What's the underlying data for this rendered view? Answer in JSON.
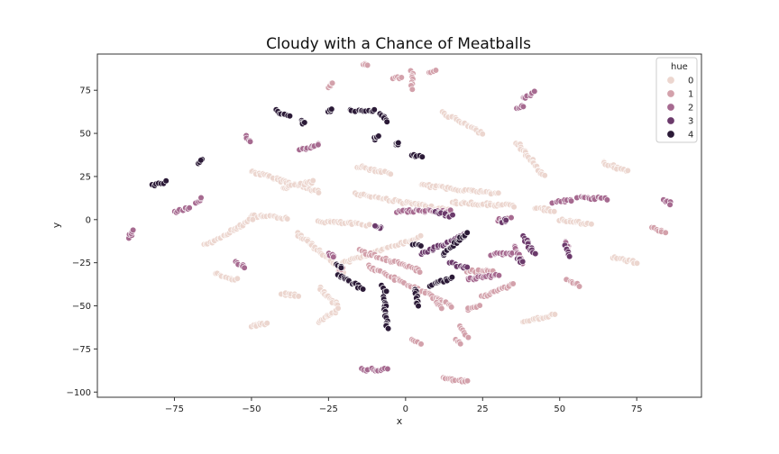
{
  "chart_data": {
    "type": "scatter",
    "title": "Cloudy with a Chance of Meatballs",
    "xlabel": "x",
    "ylabel": "y",
    "xlim": [
      -100,
      96
    ],
    "ylim": [
      -103,
      96
    ],
    "xticks": [
      -75,
      -50,
      -25,
      0,
      25,
      50,
      75
    ],
    "yticks": [
      -100,
      -75,
      -50,
      -25,
      0,
      25,
      50,
      75
    ],
    "xtick_labels": [
      "−75",
      "−50",
      "−25",
      "0",
      "25",
      "50",
      "75"
    ],
    "ytick_labels": [
      "−100",
      "−75",
      "−50",
      "−25",
      "0",
      "25",
      "50",
      "75"
    ],
    "legend": {
      "title": "hue",
      "placement": "top-right",
      "entries": [
        {
          "label": "0",
          "color": "#ecd6cf"
        },
        {
          "label": "1",
          "color": "#d3a1ab"
        },
        {
          "label": "2",
          "color": "#a66a90"
        },
        {
          "label": "3",
          "color": "#6b3a6b"
        },
        {
          "label": "4",
          "color": "#2b1a37"
        }
      ]
    },
    "series": [
      {
        "hue": 0,
        "segments": [
          [
            [
              -50,
              28
            ],
            [
              -28,
              16
            ]
          ],
          [
            [
              -16,
              31
            ],
            [
              -5,
              27
            ]
          ],
          [
            [
              -50,
              2
            ],
            [
              -38,
              1
            ]
          ],
          [
            [
              -65,
              -15
            ],
            [
              -50,
              0
            ]
          ],
          [
            [
              -28,
              -1
            ],
            [
              -12,
              -3
            ]
          ],
          [
            [
              -16,
              15
            ],
            [
              15,
              5
            ]
          ],
          [
            [
              -20,
              -25
            ],
            [
              5,
              -10
            ]
          ],
          [
            [
              -35,
              -8
            ],
            [
              -20,
              -30
            ]
          ],
          [
            [
              -28,
              -40
            ],
            [
              -22,
              -50
            ]
          ],
          [
            [
              -28,
              -60
            ],
            [
              -22,
              -52
            ]
          ],
          [
            [
              -62,
              -31
            ],
            [
              -55,
              -35
            ]
          ],
          [
            [
              -40,
              -43
            ],
            [
              -35,
              -44
            ]
          ],
          [
            [
              -50,
              -62
            ],
            [
              -45,
              -60
            ]
          ],
          [
            [
              5,
              20
            ],
            [
              30,
              15
            ]
          ],
          [
            [
              12,
              62
            ],
            [
              25,
              50
            ]
          ],
          [
            [
              36,
              45
            ],
            [
              45,
              25
            ]
          ],
          [
            [
              15,
              10
            ],
            [
              35,
              8
            ]
          ],
          [
            [
              42,
              7
            ],
            [
              48,
              5
            ]
          ],
          [
            [
              50,
              0
            ],
            [
              60,
              -3
            ]
          ],
          [
            [
              64,
              33
            ],
            [
              72,
              28
            ]
          ],
          [
            [
              67,
              -22
            ],
            [
              75,
              -25
            ]
          ],
          [
            [
              38,
              -60
            ],
            [
              48,
              -55
            ]
          ],
          [
            [
              -40,
              18
            ],
            [
              -30,
              22
            ]
          ]
        ]
      },
      {
        "hue": 1,
        "segments": [
          [
            [
              -25,
              77
            ],
            [
              -24,
              79
            ]
          ],
          [
            [
              -14,
              90
            ],
            [
              -12,
              90
            ]
          ],
          [
            [
              -4,
              82
            ],
            [
              -1,
              82
            ]
          ],
          [
            [
              2,
              86
            ],
            [
              2,
              76
            ]
          ],
          [
            [
              8,
              85
            ],
            [
              10,
              87
            ]
          ],
          [
            [
              -12,
              -27
            ],
            [
              15,
              -50
            ]
          ],
          [
            [
              20,
              -30
            ],
            [
              28,
              -30
            ]
          ],
          [
            [
              25,
              -45
            ],
            [
              35,
              -37
            ]
          ],
          [
            [
              18,
              -62
            ],
            [
              20,
              -68
            ]
          ],
          [
            [
              16,
              -70
            ],
            [
              18,
              -72
            ]
          ],
          [
            [
              2,
              -70
            ],
            [
              5,
              -72
            ]
          ],
          [
            [
              12,
              -92
            ],
            [
              20,
              -94
            ]
          ],
          [
            [
              -15,
              -18
            ],
            [
              5,
              -30
            ]
          ],
          [
            [
              52,
              -35
            ],
            [
              56,
              -38
            ]
          ],
          [
            [
              80,
              -5
            ],
            [
              84,
              -7
            ]
          ],
          [
            [
              10,
              -48
            ],
            [
              12,
              -52
            ]
          ],
          [
            [
              -22,
              -30
            ],
            [
              -20,
              -28
            ]
          ],
          [
            [
              20,
              -52
            ],
            [
              24,
              -50
            ]
          ]
        ]
      },
      {
        "hue": 2,
        "segments": [
          [
            [
              -90,
              -10
            ],
            [
              -88,
              -6
            ]
          ],
          [
            [
              -75,
              4
            ],
            [
              -70,
              7
            ]
          ],
          [
            [
              -68,
              10
            ],
            [
              -66,
              12
            ]
          ],
          [
            [
              -52,
              48
            ],
            [
              -50,
              45
            ]
          ],
          [
            [
              -35,
              40
            ],
            [
              -28,
              44
            ]
          ],
          [
            [
              -55,
              -24
            ],
            [
              -52,
              -28
            ]
          ],
          [
            [
              -14,
              -87
            ],
            [
              -6,
              -87
            ]
          ],
          [
            [
              -3,
              5
            ],
            [
              15,
              5
            ]
          ],
          [
            [
              20,
              -35
            ],
            [
              30,
              -32
            ]
          ],
          [
            [
              28,
              -20
            ],
            [
              35,
              -20
            ]
          ],
          [
            [
              30,
              0
            ],
            [
              34,
              1
            ]
          ],
          [
            [
              36,
              65
            ],
            [
              38,
              66
            ]
          ],
          [
            [
              38,
              70
            ],
            [
              42,
              74
            ]
          ],
          [
            [
              48,
              10
            ],
            [
              54,
              11
            ]
          ],
          [
            [
              56,
              13
            ],
            [
              65,
              12
            ]
          ],
          [
            [
              84,
              11
            ],
            [
              86,
              9
            ]
          ],
          [
            [
              52,
              -13
            ],
            [
              53,
              -17
            ]
          ],
          [
            [
              -25,
              -20
            ],
            [
              -23,
              -22
            ]
          ],
          [
            [
              35,
              -15
            ],
            [
              38,
              -25
            ]
          ]
        ]
      },
      {
        "hue": 3,
        "segments": [
          [
            [
              5,
              -20
            ],
            [
              20,
              -8
            ]
          ],
          [
            [
              14,
              -25
            ],
            [
              20,
              -28
            ]
          ],
          [
            [
              10,
              4
            ],
            [
              15,
              2
            ]
          ],
          [
            [
              38,
              -10
            ],
            [
              42,
              -20
            ]
          ],
          [
            [
              36,
              -22
            ],
            [
              38,
              -25
            ]
          ],
          [
            [
              52,
              -15
            ],
            [
              53,
              -21
            ]
          ],
          [
            [
              31,
              -2
            ],
            [
              33,
              0
            ]
          ],
          [
            [
              -8,
              -5
            ],
            [
              -10,
              -3
            ]
          ]
        ]
      },
      {
        "hue": 4,
        "segments": [
          [
            [
              -82,
              20
            ],
            [
              -78,
              22
            ]
          ],
          [
            [
              -67,
              33
            ],
            [
              -66,
              35
            ]
          ],
          [
            [
              -42,
              63
            ],
            [
              -38,
              60
            ]
          ],
          [
            [
              -34,
              57
            ],
            [
              -33,
              56
            ]
          ],
          [
            [
              -25,
              63
            ],
            [
              -24,
              64
            ]
          ],
          [
            [
              -18,
              63
            ],
            [
              -10,
              63
            ]
          ],
          [
            [
              -8,
              62
            ],
            [
              -6,
              57
            ]
          ],
          [
            [
              -10,
              47
            ],
            [
              -9,
              48
            ]
          ],
          [
            [
              -3,
              44
            ],
            [
              -2,
              44
            ]
          ],
          [
            [
              2,
              38
            ],
            [
              5,
              36
            ]
          ],
          [
            [
              -22,
              -32
            ],
            [
              -14,
              -40
            ]
          ],
          [
            [
              -8,
              -38
            ],
            [
              -6,
              -42
            ]
          ],
          [
            [
              -7,
              -45
            ],
            [
              -6,
              -63
            ]
          ],
          [
            [
              3,
              -40
            ],
            [
              4,
              -50
            ]
          ],
          [
            [
              8,
              -38
            ],
            [
              15,
              -34
            ]
          ],
          [
            [
              2,
              -14
            ],
            [
              5,
              -15
            ]
          ],
          [
            [
              12,
              -20
            ],
            [
              20,
              -8
            ]
          ],
          [
            [
              -22,
              -26
            ],
            [
              -21,
              -28
            ]
          ]
        ]
      }
    ]
  }
}
